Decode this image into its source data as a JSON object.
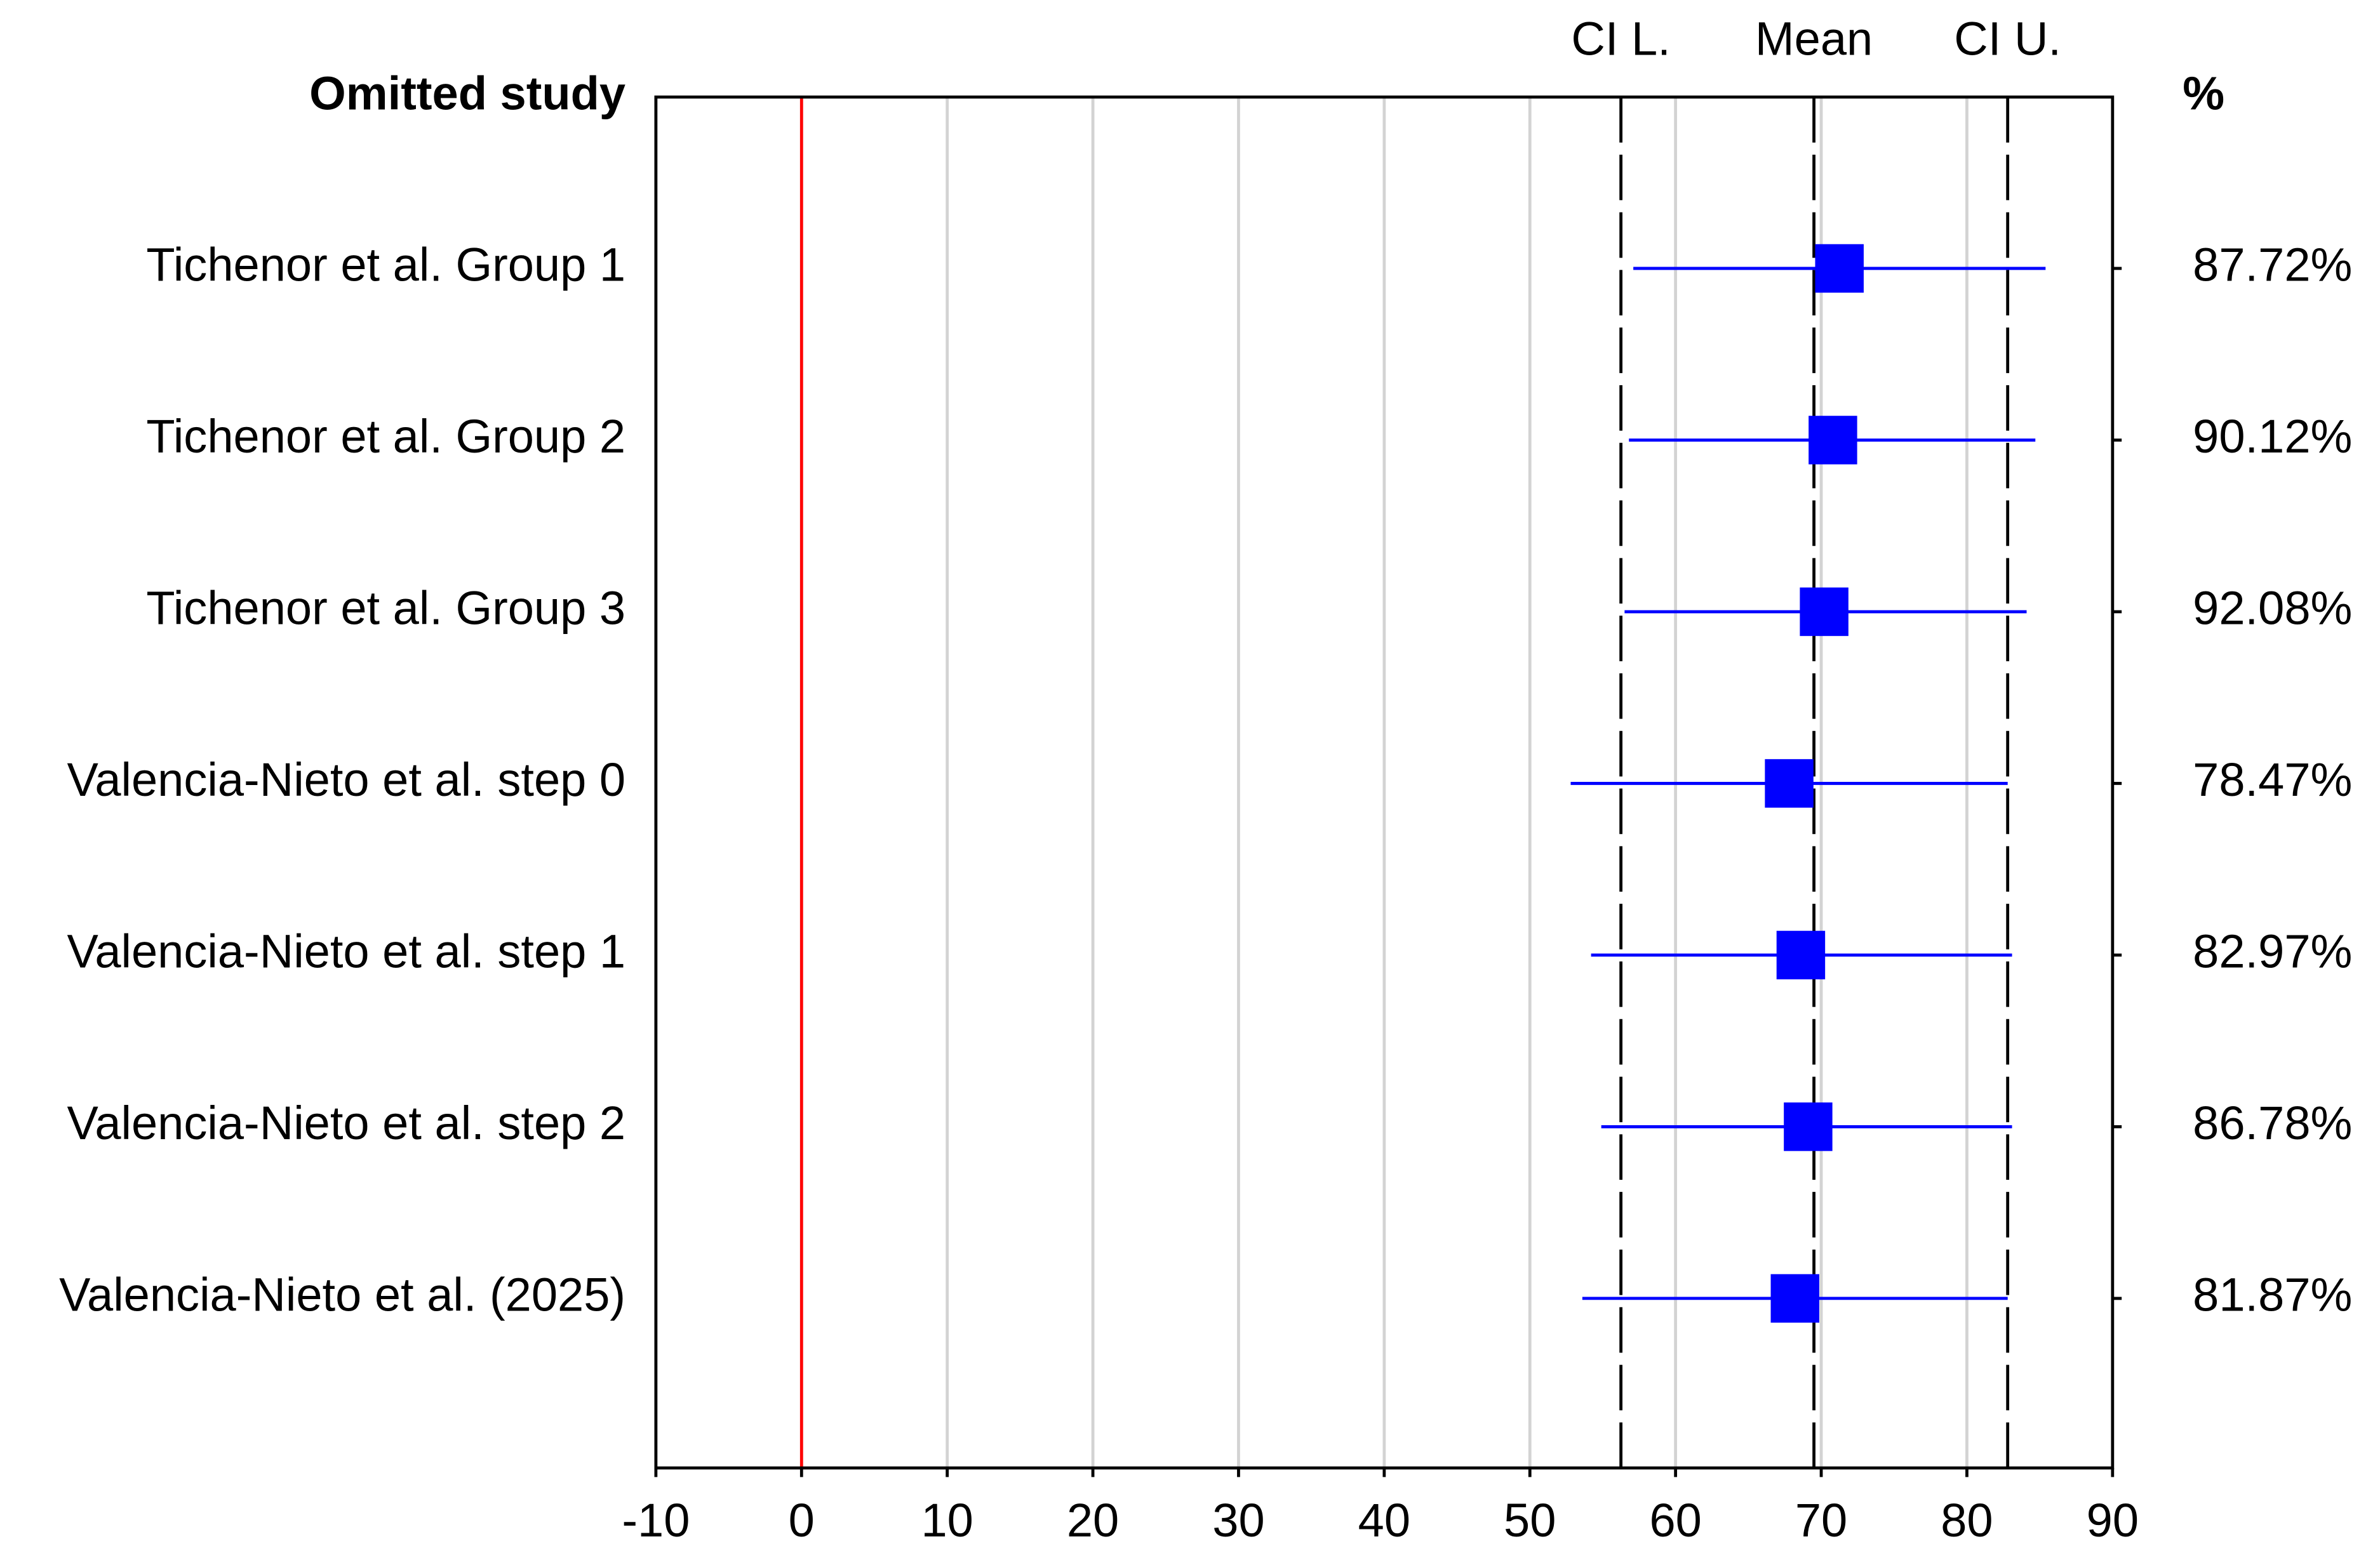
{
  "chart_data": {
    "type": "forest",
    "row_header": "Omitted study",
    "percent_header": "%",
    "categories": [
      "Tichenor et al. Group 1",
      "Tichenor et al. Group 2",
      "Tichenor et al. Group 3",
      "Valencia-Nieto et al. step 0",
      "Valencia-Nieto et al. step 1",
      "Valencia-Nieto et al. step 2",
      "Valencia-Nieto et al. (2025)"
    ],
    "values": [
      71.25,
      70.8,
      70.2,
      67.8,
      68.6,
      69.1,
      68.2
    ],
    "ci_lower": [
      57.1,
      56.8,
      56.5,
      52.8,
      54.2,
      54.9,
      53.6
    ],
    "ci_upper": [
      85.4,
      84.7,
      84.1,
      82.8,
      83.1,
      83.1,
      82.8
    ],
    "percent": [
      87.72,
      90.12,
      92.08,
      78.47,
      82.97,
      86.78,
      81.87
    ],
    "percent_labels": [
      "87.72%",
      "90.12%",
      "92.08%",
      "78.47%",
      "82.97%",
      "86.78%",
      "81.87%"
    ],
    "color": "#0000ff",
    "summary": {
      "ci_lower": 56.25,
      "mean": 69.5,
      "ci_upper": 82.8
    },
    "summary_labels": {
      "ci_lower": "CI L.",
      "mean": "Mean",
      "ci_upper": "CI U."
    },
    "reference_line": 0,
    "reference_color": "#ff0000",
    "xlim": [
      -10,
      90
    ],
    "xticks": [
      -10,
      0,
      10,
      20,
      30,
      40,
      50,
      60,
      70,
      80,
      90
    ],
    "grid": true
  }
}
